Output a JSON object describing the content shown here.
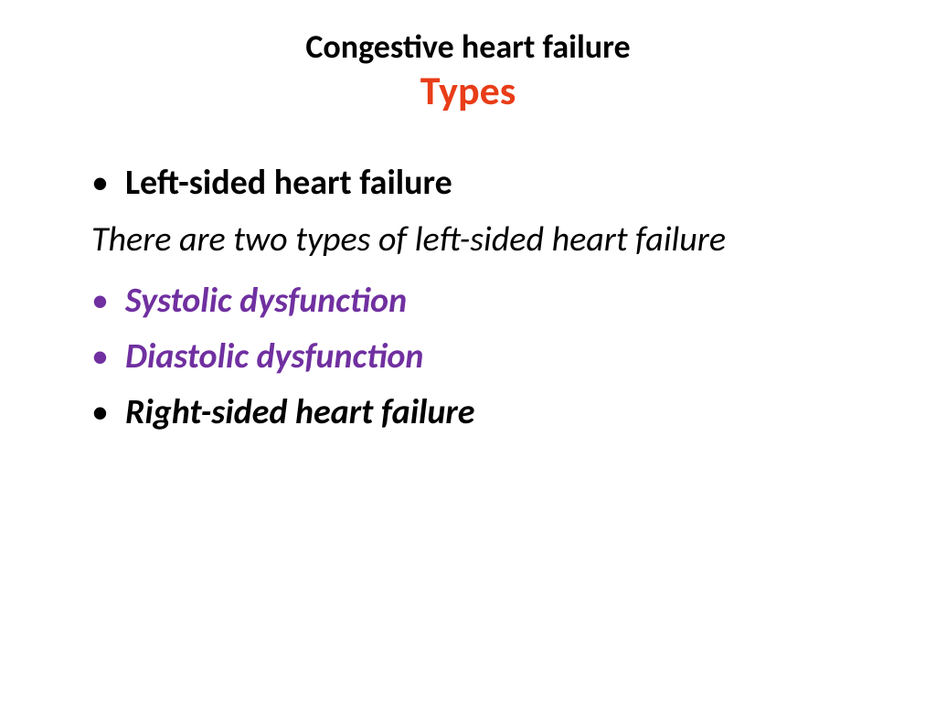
{
  "colors": {
    "title_primary": "#000000",
    "title_accent": "#e83d18",
    "text_default": "#000000",
    "text_purple": "#7030a0",
    "background": "#ffffff"
  },
  "typography": {
    "title_line1_size": 36,
    "title_line2_size": 44,
    "body_size": 38,
    "font_family": "Calibri"
  },
  "title": {
    "line1": "Congestive heart failure",
    "line2": "Types"
  },
  "content": {
    "items": [
      {
        "type": "bullet",
        "text": "Left-sided heart failure",
        "style": "bold",
        "color": "#000000",
        "bullet_color": "#000000"
      },
      {
        "type": "description",
        "text": "There are two types of left-sided heart failure",
        "style": "italic",
        "color": "#000000"
      },
      {
        "type": "bullet",
        "text": "Systolic dysfunction",
        "style": "bold-italic",
        "color": "#7030a0",
        "bullet_color": "#7030a0"
      },
      {
        "type": "bullet",
        "text": "Diastolic dysfunction",
        "style": "bold-italic",
        "color": "#7030a0",
        "bullet_color": "#7030a0"
      },
      {
        "type": "bullet",
        "text": "Right-sided heart failure",
        "style": "bold-italic",
        "color": "#000000",
        "bullet_color": "#000000"
      }
    ]
  }
}
